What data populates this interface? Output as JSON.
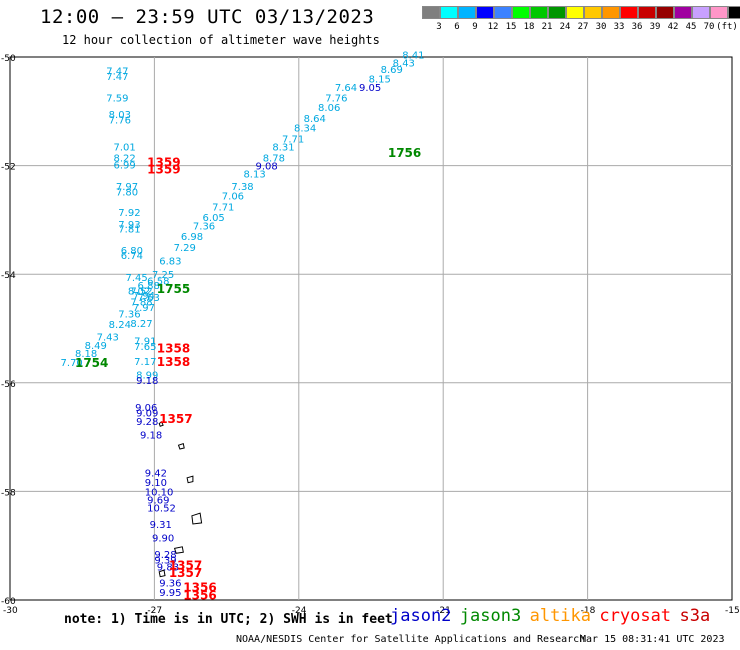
{
  "header": {
    "title": "12:00 – 23:59 UTC 03/13/2023",
    "subtitle": "12 hour collection of altimeter wave heights"
  },
  "colorbar": {
    "colors": [
      "#7f7f7f",
      "#00ffff",
      "#00b4ff",
      "#0000ff",
      "#3c82ff",
      "#00ff00",
      "#00c800",
      "#009600",
      "#ffff00",
      "#ffc800",
      "#ff9600",
      "#ff0000",
      "#c80000",
      "#960000",
      "#a000a0",
      "#c8a0ff",
      "#ff96c8",
      "#000000"
    ],
    "labels": [
      "3",
      "6",
      "9",
      "12",
      "15",
      "18",
      "21",
      "24",
      "27",
      "30",
      "33",
      "36",
      "39",
      "42",
      "45",
      "70",
      "(ft)"
    ]
  },
  "axes": {
    "y_labels": [
      {
        "lat": -50,
        "label": "-50"
      },
      {
        "lat": -52,
        "label": "-52"
      },
      {
        "lat": -54,
        "label": "-54"
      },
      {
        "lat": -56,
        "label": "-56"
      },
      {
        "lat": -58,
        "label": "-58"
      },
      {
        "lat": -60,
        "label": "-60"
      }
    ],
    "x_labels": [
      {
        "lon": -30,
        "label": "-30"
      },
      {
        "lon": -27,
        "label": "-27"
      },
      {
        "lon": -24,
        "label": "-24"
      },
      {
        "lon": -21,
        "label": "-21"
      },
      {
        "lon": -18,
        "label": "-18"
      },
      {
        "lon": -15,
        "label": "-15"
      }
    ]
  },
  "colors": {
    "light_blue": "#00a8e0",
    "dark_blue": "#0000c8",
    "red": "#ff0000",
    "green": "#008800",
    "orange": "#ff9600",
    "dark_red": "#c80000",
    "grid": "#aaaaaa"
  },
  "readings": [
    {
      "lon": -28.0,
      "lat": -50.25,
      "label": "7.47",
      "color": "light_blue"
    },
    {
      "lon": -28.0,
      "lat": -50.35,
      "label": "7.47",
      "color": "light_blue"
    },
    {
      "lon": -28.0,
      "lat": -50.75,
      "label": "7.59",
      "color": "light_blue"
    },
    {
      "lon": -27.95,
      "lat": -51.05,
      "label": "8.03",
      "color": "light_blue"
    },
    {
      "lon": -27.95,
      "lat": -51.15,
      "label": "7.76",
      "color": "light_blue"
    },
    {
      "lon": -27.85,
      "lat": -51.65,
      "label": "7.01",
      "color": "light_blue"
    },
    {
      "lon": -27.85,
      "lat": -51.85,
      "label": "8.22",
      "color": "light_blue"
    },
    {
      "lon": -27.85,
      "lat": -51.98,
      "label": "6.99",
      "color": "light_blue"
    },
    {
      "lon": -27.8,
      "lat": -52.38,
      "label": "7.97",
      "color": "light_blue"
    },
    {
      "lon": -27.8,
      "lat": -52.48,
      "label": "7.80",
      "color": "light_blue"
    },
    {
      "lon": -27.75,
      "lat": -52.85,
      "label": "7.92",
      "color": "light_blue"
    },
    {
      "lon": -27.75,
      "lat": -53.08,
      "label": "7.93",
      "color": "light_blue"
    },
    {
      "lon": -27.75,
      "lat": -53.16,
      "label": "7.81",
      "color": "light_blue"
    },
    {
      "lon": -27.7,
      "lat": -53.55,
      "label": "6.80",
      "color": "light_blue"
    },
    {
      "lon": -27.7,
      "lat": -53.65,
      "label": "6.74",
      "color": "light_blue"
    },
    {
      "lon": -27.6,
      "lat": -54.05,
      "label": "7.45",
      "color": "light_blue"
    },
    {
      "lon": -27.55,
      "lat": -54.3,
      "label": "8.02",
      "color": "light_blue"
    },
    {
      "lon": -27.45,
      "lat": -54.38,
      "label": "7.94",
      "color": "light_blue"
    },
    {
      "lon": -27.35,
      "lat": -54.42,
      "label": "7.63",
      "color": "light_blue"
    },
    {
      "lon": -27.5,
      "lat": -54.5,
      "label": "7.88",
      "color": "light_blue"
    },
    {
      "lon": -27.45,
      "lat": -54.6,
      "label": "7.97",
      "color": "light_blue"
    },
    {
      "lon": -27.75,
      "lat": -54.72,
      "label": "7.36",
      "color": "light_blue"
    },
    {
      "lon": -27.5,
      "lat": -54.9,
      "label": "8.27",
      "color": "light_blue"
    },
    {
      "lon": -27.95,
      "lat": -54.92,
      "label": "8.24",
      "color": "light_blue"
    },
    {
      "lon": -28.2,
      "lat": -55.15,
      "label": "7.43",
      "color": "light_blue"
    },
    {
      "lon": -28.45,
      "lat": -55.3,
      "label": "8.49",
      "color": "light_blue"
    },
    {
      "lon": -28.65,
      "lat": -55.45,
      "label": "8.18",
      "color": "light_blue"
    },
    {
      "lon": -28.95,
      "lat": -55.62,
      "label": "7.70",
      "color": "light_blue"
    },
    {
      "lon": -27.42,
      "lat": -55.22,
      "label": "7.91",
      "color": "light_blue"
    },
    {
      "lon": -27.42,
      "lat": -55.32,
      "label": "7.65",
      "color": "light_blue"
    },
    {
      "lon": -27.42,
      "lat": -55.6,
      "label": "7.17",
      "color": "light_blue"
    },
    {
      "lon": -27.38,
      "lat": -55.85,
      "label": "8.99",
      "color": "light_blue"
    },
    {
      "lon": -27.05,
      "lat": -54.0,
      "label": "7.25",
      "color": "light_blue"
    },
    {
      "lon": -26.9,
      "lat": -53.75,
      "label": "6.83",
      "color": "light_blue"
    },
    {
      "lon": -26.6,
      "lat": -53.5,
      "label": "7.29",
      "color": "light_blue"
    },
    {
      "lon": -26.45,
      "lat": -53.3,
      "label": "6.98",
      "color": "light_blue"
    },
    {
      "lon": -26.2,
      "lat": -53.1,
      "label": "7.36",
      "color": "light_blue"
    },
    {
      "lon": -26.0,
      "lat": -52.95,
      "label": "6.05",
      "color": "light_blue"
    },
    {
      "lon": -25.8,
      "lat": -52.75,
      "label": "7.71",
      "color": "light_blue"
    },
    {
      "lon": -25.6,
      "lat": -52.55,
      "label": "7.06",
      "color": "light_blue"
    },
    {
      "lon": -25.4,
      "lat": -52.38,
      "label": "7.38",
      "color": "light_blue"
    },
    {
      "lon": -25.15,
      "lat": -52.15,
      "label": "8.13",
      "color": "light_blue"
    },
    {
      "lon": -24.75,
      "lat": -51.85,
      "label": "8.78",
      "color": "light_blue"
    },
    {
      "lon": -24.55,
      "lat": -51.65,
      "label": "8.31",
      "color": "light_blue"
    },
    {
      "lon": -24.35,
      "lat": -51.5,
      "label": "7.71",
      "color": "light_blue"
    },
    {
      "lon": -24.1,
      "lat": -51.3,
      "label": "8.34",
      "color": "light_blue"
    },
    {
      "lon": -23.9,
      "lat": -51.12,
      "label": "8.64",
      "color": "light_blue"
    },
    {
      "lon": -23.6,
      "lat": -50.92,
      "label": "8.06",
      "color": "light_blue"
    },
    {
      "lon": -23.45,
      "lat": -50.75,
      "label": "7.76",
      "color": "light_blue"
    },
    {
      "lon": -23.25,
      "lat": -50.55,
      "label": "7.64",
      "color": "light_blue"
    },
    {
      "lon": -22.55,
      "lat": -50.4,
      "label": "8.15",
      "color": "light_blue"
    },
    {
      "lon": -22.3,
      "lat": -50.22,
      "label": "8.69",
      "color": "light_blue"
    },
    {
      "lon": -22.05,
      "lat": -50.1,
      "label": "8.43",
      "color": "light_blue"
    },
    {
      "lon": -21.85,
      "lat": -49.95,
      "label": "8.41",
      "color": "light_blue"
    },
    {
      "lon": -27.15,
      "lat": -54.12,
      "label": "6.58",
      "color": "light_blue"
    },
    {
      "lon": -27.35,
      "lat": -54.2,
      "label": "6.88",
      "color": "light_blue"
    },
    {
      "lon": -27.5,
      "lat": -54.3,
      "label": "7.52",
      "color": "light_blue"
    },
    {
      "lon": -22.75,
      "lat": -50.55,
      "label": "9.05",
      "color": "dark_blue"
    },
    {
      "lon": -24.9,
      "lat": -52.0,
      "label": "9.08",
      "color": "dark_blue"
    },
    {
      "lon": -27.38,
      "lat": -55.95,
      "label": "9.18",
      "color": "dark_blue"
    },
    {
      "lon": -27.4,
      "lat": -56.45,
      "label": "9.06",
      "color": "dark_blue"
    },
    {
      "lon": -27.38,
      "lat": -56.55,
      "label": "9.09",
      "color": "dark_blue"
    },
    {
      "lon": -27.38,
      "lat": -56.7,
      "label": "9.28",
      "color": "dark_blue"
    },
    {
      "lon": -27.3,
      "lat": -56.95,
      "label": "9.18",
      "color": "dark_blue"
    },
    {
      "lon": -27.2,
      "lat": -57.65,
      "label": "9.42",
      "color": "dark_blue"
    },
    {
      "lon": -27.2,
      "lat": -57.83,
      "label": "9.10",
      "color": "dark_blue"
    },
    {
      "lon": -27.2,
      "lat": -58.0,
      "label": "10.10",
      "color": "dark_blue"
    },
    {
      "lon": -27.15,
      "lat": -58.15,
      "label": "9.69",
      "color": "dark_blue"
    },
    {
      "lon": -27.15,
      "lat": -58.3,
      "label": "10.52",
      "color": "dark_blue"
    },
    {
      "lon": -27.1,
      "lat": -58.6,
      "label": "9.31",
      "color": "dark_blue"
    },
    {
      "lon": -27.05,
      "lat": -58.85,
      "label": "9.90",
      "color": "dark_blue"
    },
    {
      "lon": -27.0,
      "lat": -59.15,
      "label": "9.28",
      "color": "dark_blue"
    },
    {
      "lon": -27.0,
      "lat": -59.25,
      "label": "9.39",
      "color": "dark_blue"
    },
    {
      "lon": -26.95,
      "lat": -59.38,
      "label": "9.83",
      "color": "dark_blue"
    },
    {
      "lon": -26.9,
      "lat": -59.68,
      "label": "9.36",
      "color": "dark_blue"
    },
    {
      "lon": -26.9,
      "lat": -59.85,
      "label": "9.95",
      "color": "dark_blue"
    }
  ],
  "time_labels": [
    {
      "lon": -22.15,
      "lat": -51.75,
      "label": "1756",
      "color": "green"
    },
    {
      "lon": -26.95,
      "lat": -54.25,
      "label": "1755",
      "color": "green"
    },
    {
      "lon": -28.65,
      "lat": -55.62,
      "label": "1754",
      "color": "green"
    },
    {
      "lon": -27.15,
      "lat": -51.92,
      "label": "1359",
      "color": "red"
    },
    {
      "lon": -27.15,
      "lat": -52.05,
      "label": "1359",
      "color": "red"
    },
    {
      "lon": -26.95,
      "lat": -55.35,
      "label": "1358",
      "color": "red"
    },
    {
      "lon": -26.95,
      "lat": -55.6,
      "label": "1358",
      "color": "red"
    },
    {
      "lon": -26.9,
      "lat": -56.65,
      "label": "1357",
      "color": "red"
    },
    {
      "lon": -26.7,
      "lat": -59.35,
      "label": "1357",
      "color": "red"
    },
    {
      "lon": -26.7,
      "lat": -59.48,
      "label": "1357",
      "color": "red"
    },
    {
      "lon": -26.4,
      "lat": -59.75,
      "label": "1356",
      "color": "red"
    },
    {
      "lon": -26.4,
      "lat": -59.9,
      "label": "1356",
      "color": "red"
    }
  ],
  "islands": [
    {
      "name": "island-small-1",
      "points": [
        [
          -26.9,
          -56.75
        ],
        [
          -26.85,
          -56.72
        ],
        [
          -26.82,
          -56.78
        ],
        [
          -26.88,
          -56.8
        ]
      ]
    },
    {
      "name": "island-small-2",
      "points": [
        [
          -26.5,
          -57.15
        ],
        [
          -26.4,
          -57.12
        ],
        [
          -26.38,
          -57.2
        ],
        [
          -26.47,
          -57.22
        ]
      ]
    },
    {
      "name": "island-small-3",
      "points": [
        [
          -26.32,
          -57.75
        ],
        [
          -26.2,
          -57.72
        ],
        [
          -26.2,
          -57.82
        ],
        [
          -26.3,
          -57.84
        ]
      ]
    },
    {
      "name": "island-small-4",
      "points": [
        [
          -26.22,
          -58.45
        ],
        [
          -26.05,
          -58.4
        ],
        [
          -26.02,
          -58.58
        ],
        [
          -26.2,
          -58.6
        ]
      ]
    },
    {
      "name": "island-small-5",
      "points": [
        [
          -26.58,
          -59.05
        ],
        [
          -26.42,
          -59.02
        ],
        [
          -26.4,
          -59.12
        ],
        [
          -26.55,
          -59.14
        ]
      ]
    },
    {
      "name": "island-small-6",
      "points": [
        [
          -26.9,
          -59.48
        ],
        [
          -26.8,
          -59.45
        ],
        [
          -26.78,
          -59.55
        ],
        [
          -26.88,
          -59.57
        ]
      ]
    }
  ],
  "footer": {
    "note": "note: 1) Time is in UTC; 2) SWH is in feet",
    "satellites": [
      {
        "label": "jason2",
        "color": "dark_blue"
      },
      {
        "label": "jason3",
        "color": "green"
      },
      {
        "label": "altika",
        "color": "orange"
      },
      {
        "label": "cryosat",
        "color": "red"
      },
      {
        "label": "s3a",
        "color": "dark_red"
      }
    ],
    "credit": "NOAA/NESDIS Center for Satellite Applications and Research",
    "timestamp": "Mar 15 08:31:41 UTC 2023"
  }
}
